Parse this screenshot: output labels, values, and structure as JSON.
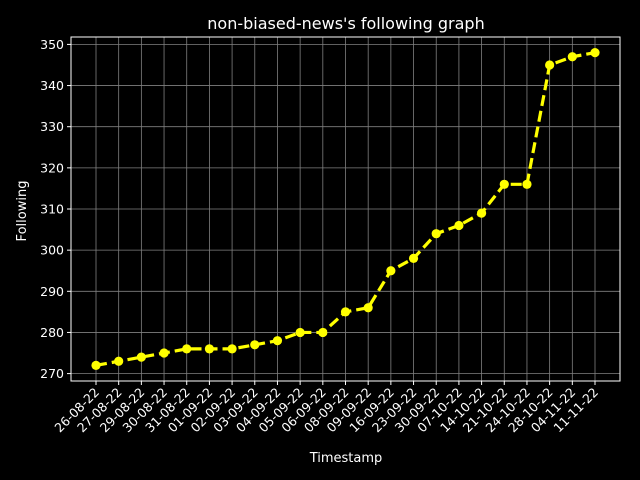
{
  "chart_data": {
    "type": "line",
    "title": "non-biased-news's following graph",
    "xlabel": "Timestamp",
    "ylabel": "Following",
    "categories": [
      "26-08-22",
      "27-08-22",
      "29-08-22",
      "30-08-22",
      "31-08-22",
      "01-09-22",
      "02-09-22",
      "03-09-22",
      "04-09-22",
      "05-09-22",
      "06-09-22",
      "08-09-22",
      "09-09-22",
      "16-09-22",
      "23-09-22",
      "30-09-22",
      "07-10-22",
      "14-10-22",
      "21-10-22",
      "24-10-22",
      "28-10-22",
      "04-11-22",
      "11-11-22"
    ],
    "series": [
      {
        "values": [
          272,
          273,
          274,
          275,
          276,
          276,
          276,
          277,
          278,
          280,
          280,
          285,
          286,
          295,
          298,
          304,
          306,
          309,
          316,
          316,
          345,
          347,
          348
        ]
      }
    ],
    "ylim": [
      268.2,
      351.8
    ],
    "yticks": [
      270,
      280,
      290,
      300,
      310,
      320,
      330,
      340,
      350
    ],
    "grid": true,
    "line_style": "dashed",
    "marker": "circle"
  },
  "colors": {
    "background": "#000000",
    "series": "#ffff00",
    "grid": "#808080",
    "axes": "#ffffff",
    "text": "#ffffff"
  }
}
